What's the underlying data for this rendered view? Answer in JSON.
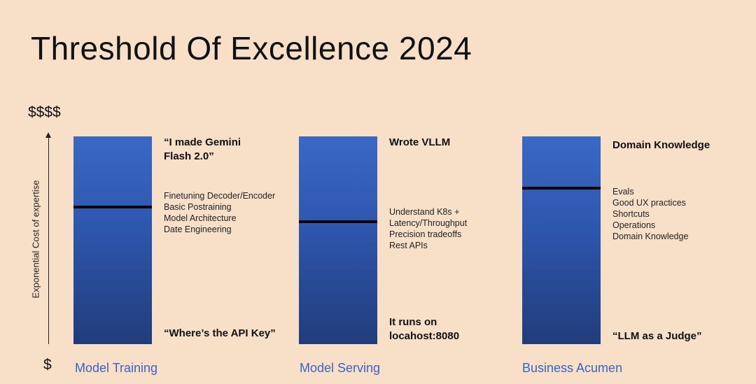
{
  "title": "Threshold Of Excellence 2024",
  "axis": {
    "top_label": "$$$$",
    "bottom_label": "$",
    "label": "Exponential Cost of expertise"
  },
  "columns": [
    {
      "category": "Model Training",
      "threshold": 0.66,
      "top_text": [
        "“I made Gemini",
        "Flash 2.0”"
      ],
      "threshold_items": [
        "Finetuning Decoder/Encoder",
        "Basic Postraining",
        "Model Architecture",
        "Date Engineering"
      ],
      "bottom_text": [
        "“Where’s the API Key”"
      ]
    },
    {
      "category": "Model Serving",
      "threshold": 0.59,
      "top_text": [
        "Wrote VLLM"
      ],
      "threshold_items": [
        "Understand K8s +",
        "Latency/Throughput",
        "Precision tradeoffs",
        "Rest APIs"
      ],
      "bottom_text": [
        "It runs on",
        "locahost:8080"
      ]
    },
    {
      "category": "Business Acumen",
      "threshold": 0.75,
      "top_text": [
        "Domain Knowledge"
      ],
      "threshold_items": [
        "Evals",
        "Good UX practices",
        "Shortcuts",
        "Operations",
        "Domain Knowledge"
      ],
      "bottom_text": [
        "“LLM as a Judge”"
      ]
    }
  ]
}
